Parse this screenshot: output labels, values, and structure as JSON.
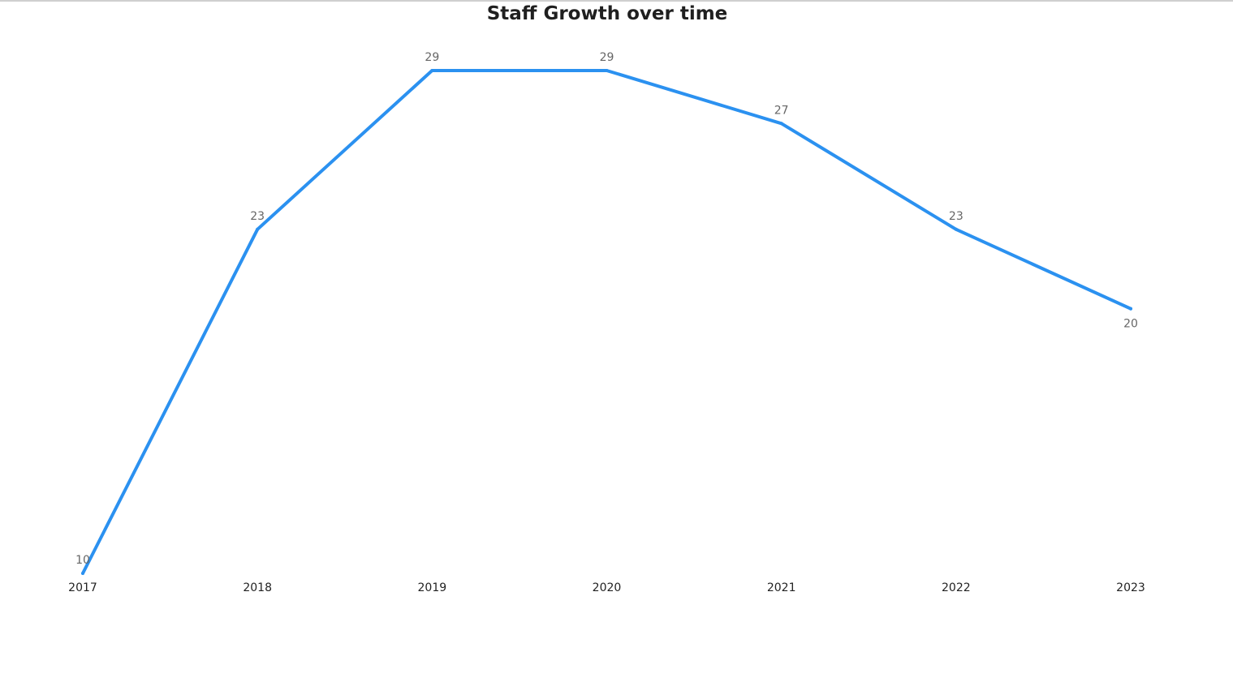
{
  "chart_data": {
    "type": "line",
    "title": "Staff Growth over time",
    "xlabel": "",
    "ylabel": "",
    "categories": [
      "2017",
      "2018",
      "2019",
      "2020",
      "2021",
      "2022",
      "2023"
    ],
    "series": [
      {
        "values": [
          10,
          23,
          29,
          29,
          27,
          23,
          20
        ],
        "color": "#2b91f0"
      }
    ],
    "ylim": [
      10,
      29
    ],
    "grid": false,
    "legend": "none",
    "data_labels": true
  }
}
